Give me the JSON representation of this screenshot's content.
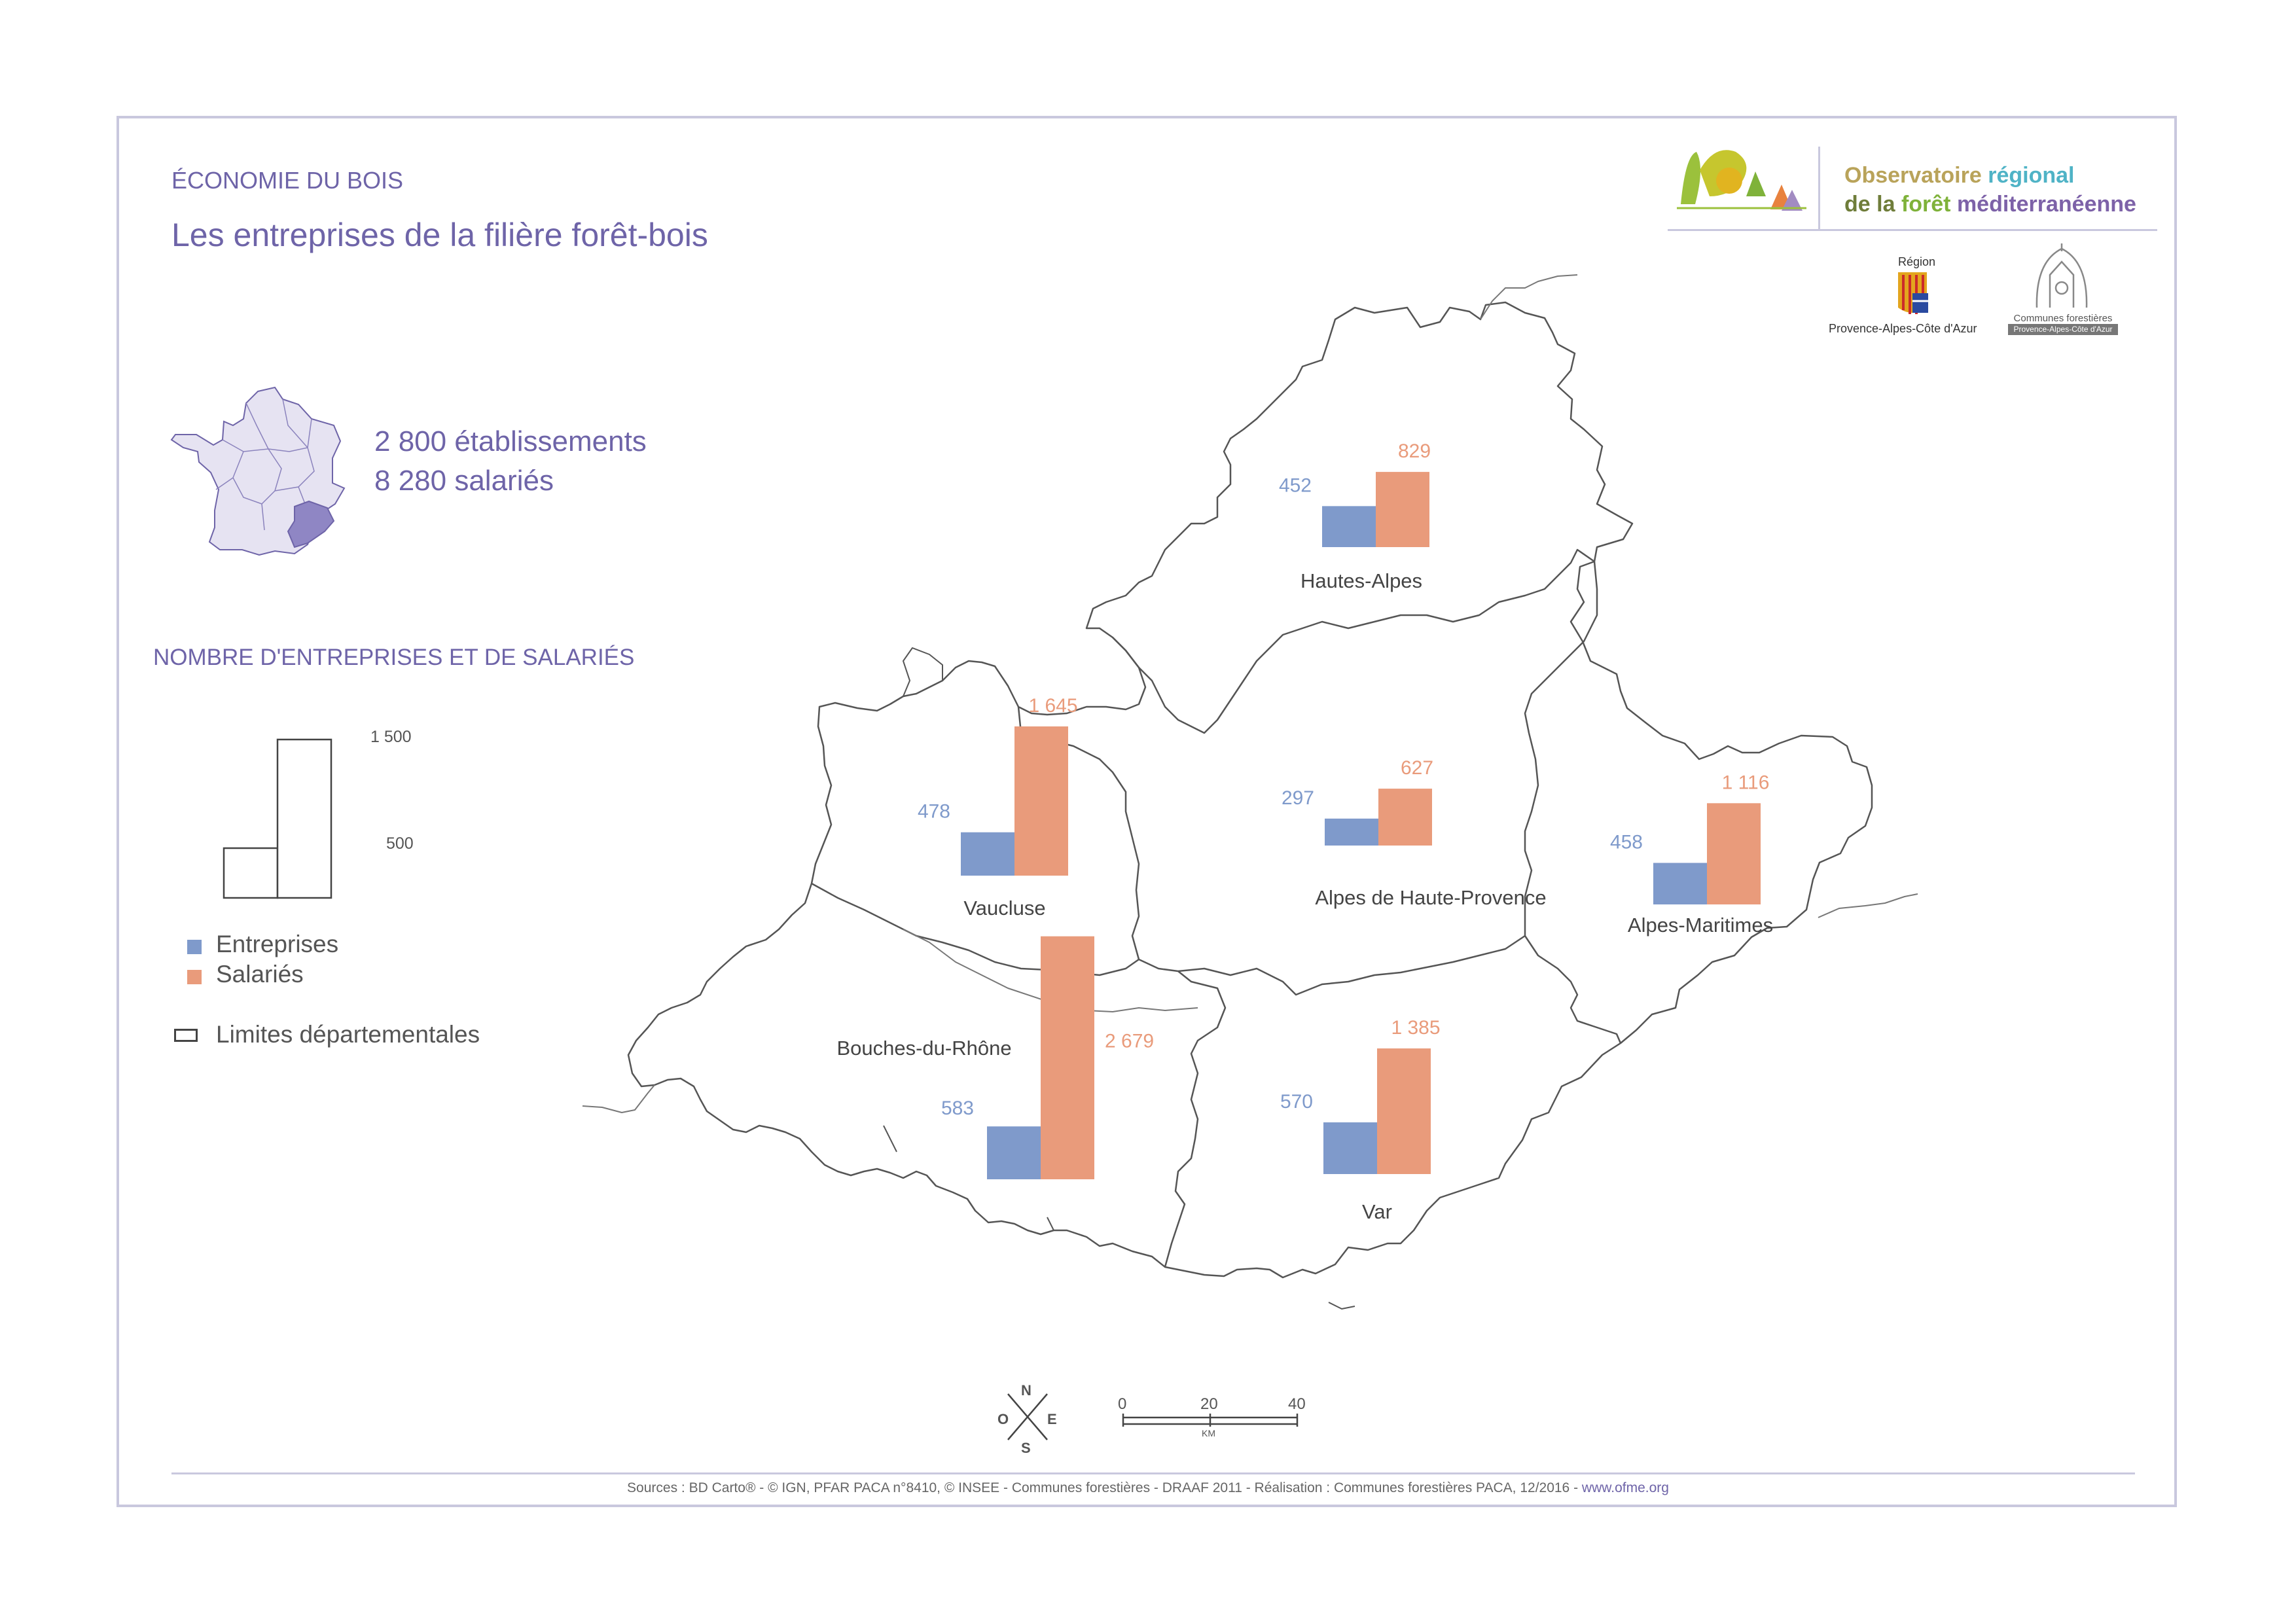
{
  "header": {
    "kicker": "ÉCONOMIE DU BOIS",
    "title": "Les entreprises de la filière forêt-bois"
  },
  "stats": {
    "etablissements": "2 800 établissements",
    "salaries": "8 280 salariés"
  },
  "legend": {
    "title": "NOMBRE D'ENTREPRISES ET DE SALARIÉS",
    "scale_high": "1 500",
    "scale_low": "500",
    "entreprises_label": "Entreprises",
    "salaries_label": "Salariés",
    "limites_label": "Limites départementales"
  },
  "logo": {
    "line1_a": "Observatoire",
    "line1_b": "régional",
    "line2_a": "de la",
    "line2_b": "forêt",
    "line2_c": "méditerranéenne",
    "region_label": "Région",
    "region_name": "Provence-Alpes-Côte d'Azur",
    "cf_line1": "Communes forestières",
    "cf_line2": "Provence-Alpes-Côte d'Azur"
  },
  "colors": {
    "entreprises": "#7f9acb",
    "salaries": "#e99b7b",
    "title": "#6e64a8",
    "border": "#c9c8de"
  },
  "chart_data": {
    "type": "bar",
    "categories": [
      "Hautes-Alpes",
      "Vaucluse",
      "Alpes de Haute-Provence",
      "Alpes-Maritimes",
      "Bouches-du-Rhône",
      "Var"
    ],
    "series": [
      {
        "name": "Entreprises",
        "values": [
          452,
          478,
          297,
          458,
          583,
          570
        ]
      },
      {
        "name": "Salariés",
        "values": [
          829,
          1645,
          627,
          1116,
          2679,
          1385
        ]
      }
    ],
    "value_labels": {
      "Entreprises": [
        "452",
        "478",
        "297",
        "458",
        "583",
        "570"
      ],
      "Salariés": [
        "829",
        "1 645",
        "627",
        "1 116",
        "2 679",
        "1 385"
      ]
    }
  },
  "scale_bar": {
    "ticks": [
      "0",
      "20",
      "40"
    ],
    "unit": "KM"
  },
  "compass": {
    "n": "N",
    "s": "S",
    "e": "E",
    "o": "O"
  },
  "footer": {
    "sources": "Sources : BD Carto® - © IGN, PFAR PACA n°8410,  © INSEE - Communes forestières - DRAAF 2011 - Réalisation : Communes forestières PACA, 12/2016 - ",
    "link": "www.ofme.org"
  }
}
